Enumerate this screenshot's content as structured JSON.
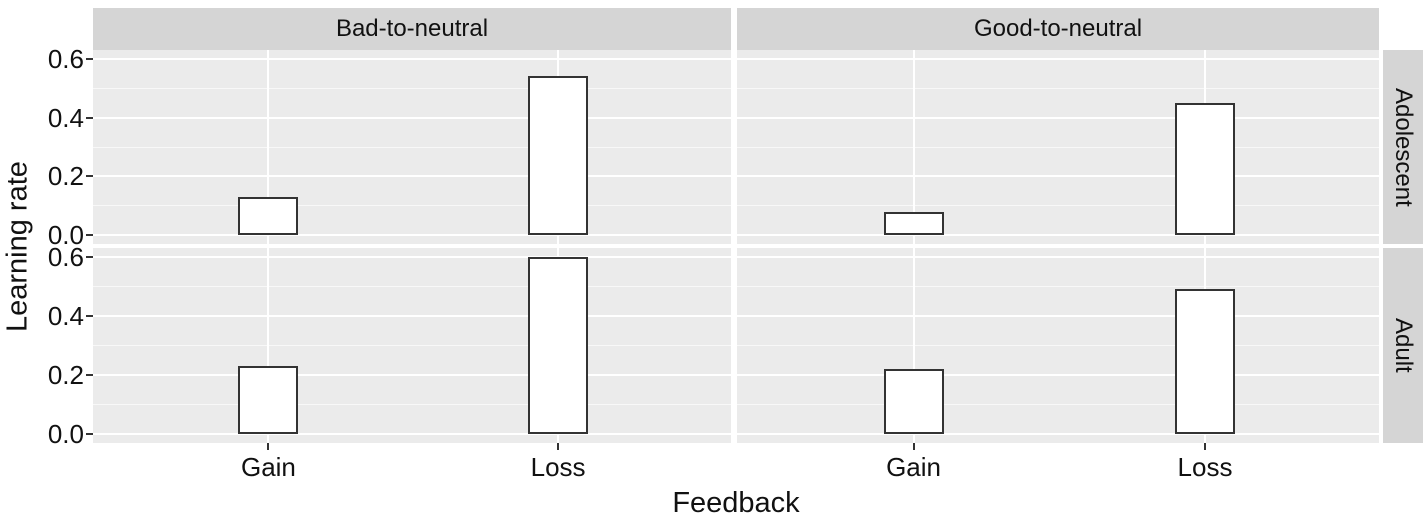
{
  "chart_data": {
    "type": "bar",
    "title": "",
    "xlabel": "Feedback",
    "ylabel": "Learning rate",
    "categories": [
      "Gain",
      "Loss"
    ],
    "column_facets": [
      "Bad-to-neutral",
      "Good-to-neutral"
    ],
    "row_facets": [
      "Adolescent",
      "Adult"
    ],
    "ylim": [
      0,
      0.6
    ],
    "y_tick_labels": [
      "0.6",
      "0.4",
      "0.2",
      "0.0"
    ],
    "y_tick_values": [
      0.6,
      0.4,
      0.2,
      0.0
    ],
    "gridlines": {
      "major": [
        0.0,
        0.2,
        0.4,
        0.6
      ],
      "minor": [
        0.1,
        0.3,
        0.5
      ]
    },
    "legend_position": "none",
    "series": [
      {
        "row_facet": "Adolescent",
        "column_facet": "Bad-to-neutral",
        "values": {
          "Gain": 0.13,
          "Loss": 0.54
        }
      },
      {
        "row_facet": "Adolescent",
        "column_facet": "Good-to-neutral",
        "values": {
          "Gain": 0.08,
          "Loss": 0.45
        }
      },
      {
        "row_facet": "Adult",
        "column_facet": "Bad-to-neutral",
        "values": {
          "Gain": 0.23,
          "Loss": 0.6
        }
      },
      {
        "row_facet": "Adult",
        "column_facet": "Good-to-neutral",
        "values": {
          "Gain": 0.22,
          "Loss": 0.49
        }
      }
    ],
    "colors": {
      "panel_background": "#ebebeb",
      "strip_background": "#d5d5d5",
      "gridline": "#ffffff",
      "bar_fill": "#ffffff",
      "bar_border": "#333333",
      "text": "#111111",
      "tick_mark": "#333333"
    }
  }
}
